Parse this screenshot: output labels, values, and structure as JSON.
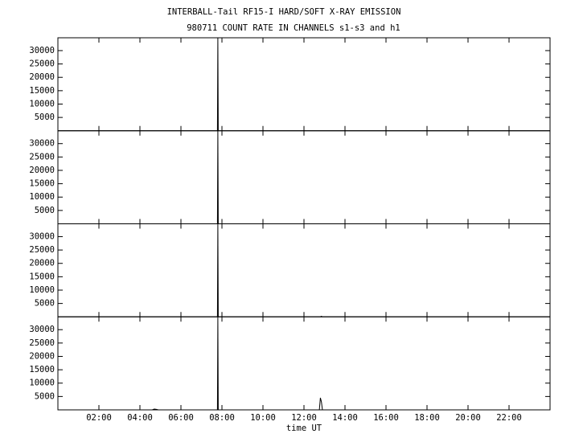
{
  "chart_data": {
    "type": "line",
    "title": "INTERBALL-Tail RF15-I HARD/SOFT X-RAY EMISSION",
    "subtitle": "980711  COUNT RATE IN CHANNELS s1-s3 and h1",
    "x_label": "time UT",
    "color": "#000000",
    "xlim": [
      0,
      24
    ],
    "xticks": [
      {
        "value": 2,
        "label": "02:00"
      },
      {
        "value": 4,
        "label": "04:00"
      },
      {
        "value": 6,
        "label": "06:00"
      },
      {
        "value": 8,
        "label": "08:00"
      },
      {
        "value": 10,
        "label": "10:00"
      },
      {
        "value": 12,
        "label": "12:00"
      },
      {
        "value": 14,
        "label": "14:00"
      },
      {
        "value": 16,
        "label": "16:00"
      },
      {
        "value": 18,
        "label": "18:00"
      },
      {
        "value": 20,
        "label": "20:00"
      },
      {
        "value": 22,
        "label": "22:00"
      }
    ],
    "panels": [
      {
        "ylim": [
          0,
          34800
        ],
        "yticks": [
          5000,
          10000,
          15000,
          20000,
          25000,
          30000
        ],
        "x": [
          0,
          7.78,
          7.8,
          7.82,
          24
        ],
        "values": [
          0,
          0,
          34800,
          0,
          0
        ]
      },
      {
        "ylim": [
          0,
          34800
        ],
        "yticks": [
          5000,
          10000,
          15000,
          20000,
          25000,
          30000
        ],
        "x": [
          0,
          7.78,
          7.8,
          7.82,
          24
        ],
        "values": [
          0,
          0,
          34800,
          0,
          0
        ]
      },
      {
        "ylim": [
          0,
          34800
        ],
        "yticks": [
          5000,
          10000,
          15000,
          20000,
          25000,
          30000
        ],
        "x": [
          0,
          7.78,
          7.8,
          7.82,
          12.8,
          12.85,
          12.9,
          24
        ],
        "values": [
          0,
          0,
          34800,
          0,
          0,
          200,
          0,
          0
        ]
      },
      {
        "ylim": [
          0,
          34800
        ],
        "yticks": [
          5000,
          10000,
          15000,
          20000,
          25000,
          30000
        ],
        "x": [
          0,
          4.6,
          4.7,
          4.8,
          4.9,
          7.78,
          7.8,
          7.82,
          12.75,
          12.8,
          12.85,
          12.9,
          24
        ],
        "values": [
          0,
          0,
          300,
          200,
          0,
          0,
          34800,
          0,
          0,
          4500,
          3000,
          0,
          0
        ]
      }
    ]
  }
}
